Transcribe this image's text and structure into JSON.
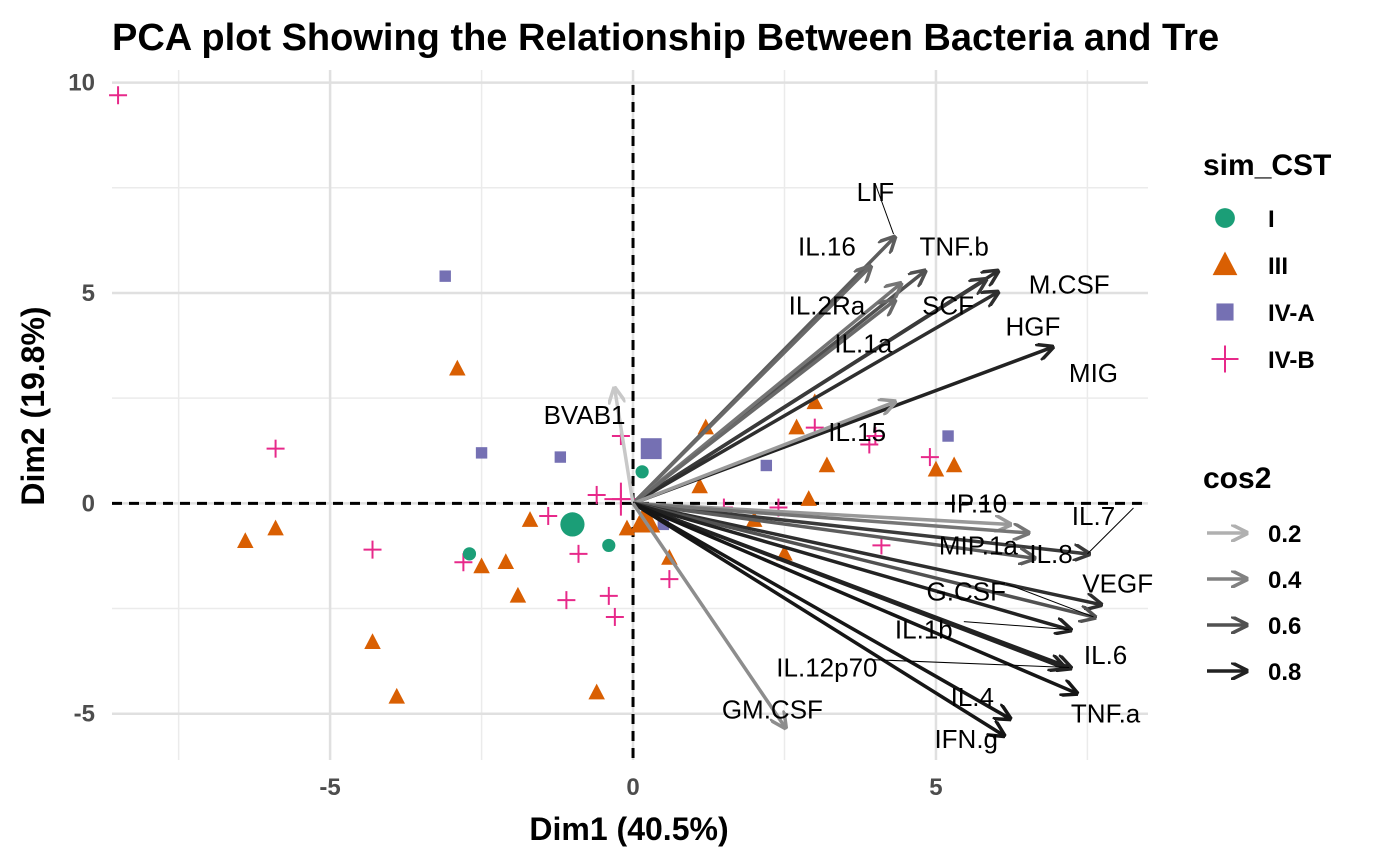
{
  "chart_data": {
    "type": "scatter",
    "title": "PCA plot Showing the Relationship Between Bacteria and Tre",
    "xlabel": "Dim1 (40.5%)",
    "ylabel": "Dim2 (19.8%)",
    "xlim": [
      -8.6,
      8.5
    ],
    "ylim": [
      -6.1,
      10.3
    ],
    "xticks": [
      -5,
      0,
      5
    ],
    "yticks": [
      -5,
      0,
      5,
      10
    ],
    "xtick_labels": [
      "-5",
      "0",
      "5"
    ],
    "ytick_labels": [
      "-5",
      "0",
      "5",
      "10"
    ],
    "grid": true,
    "reference_lines": {
      "x": 0,
      "y": 0,
      "style": "dashed"
    },
    "legend_placement": "right",
    "groups": [
      {
        "name": "I",
        "color": "#1b9e77",
        "shape": "circle"
      },
      {
        "name": "III",
        "color": "#d95f02",
        "shape": "triangle"
      },
      {
        "name": "IV-A",
        "color": "#7570b3",
        "shape": "square"
      },
      {
        "name": "IV-B",
        "color": "#e7298a",
        "shape": "plus"
      }
    ],
    "points": [
      {
        "group": "IV-B",
        "x": -8.5,
        "y": 9.7
      },
      {
        "group": "IV-B",
        "x": -5.9,
        "y": 1.3
      },
      {
        "group": "IV-B",
        "x": -4.3,
        "y": -1.1
      },
      {
        "group": "IV-B",
        "x": -2.8,
        "y": -1.4
      },
      {
        "group": "IV-B",
        "x": -1.4,
        "y": -0.3
      },
      {
        "group": "IV-B",
        "x": -1.1,
        "y": -2.3
      },
      {
        "group": "IV-B",
        "x": -0.9,
        "y": -1.2
      },
      {
        "group": "IV-B",
        "x": -0.6,
        "y": 0.2
      },
      {
        "group": "IV-B",
        "x": -0.4,
        "y": -2.2
      },
      {
        "group": "IV-B",
        "x": -0.3,
        "y": -2.7
      },
      {
        "group": "IV-B",
        "x": -0.2,
        "y": 1.6
      },
      {
        "group": "IV-B",
        "x": -0.2,
        "y": 0.1
      },
      {
        "group": "IV-B",
        "x": 0.6,
        "y": -1.8
      },
      {
        "group": "IV-B",
        "x": 1.5,
        "y": -0.1
      },
      {
        "group": "IV-B",
        "x": 2.4,
        "y": -0.1
      },
      {
        "group": "IV-B",
        "x": 3.0,
        "y": 1.8
      },
      {
        "group": "IV-B",
        "x": 3.9,
        "y": 1.4
      },
      {
        "group": "IV-B",
        "x": 4.0,
        "y": 1.6
      },
      {
        "group": "IV-B",
        "x": 4.1,
        "y": -1.0
      },
      {
        "group": "IV-B",
        "x": 4.9,
        "y": 1.1
      },
      {
        "group": "III",
        "x": -6.4,
        "y": -0.9
      },
      {
        "group": "III",
        "x": -5.9,
        "y": -0.6
      },
      {
        "group": "III",
        "x": -4.3,
        "y": -3.3
      },
      {
        "group": "III",
        "x": -3.9,
        "y": -4.6
      },
      {
        "group": "III",
        "x": -2.9,
        "y": 3.2
      },
      {
        "group": "III",
        "x": -2.5,
        "y": -1.5
      },
      {
        "group": "III",
        "x": -2.1,
        "y": -1.4
      },
      {
        "group": "III",
        "x": -1.9,
        "y": -2.2
      },
      {
        "group": "III",
        "x": -1.7,
        "y": -0.4
      },
      {
        "group": "III",
        "x": -0.6,
        "y": -4.5
      },
      {
        "group": "III",
        "x": -0.1,
        "y": -0.6
      },
      {
        "group": "III",
        "x": 0.2,
        "y": -0.4
      },
      {
        "group": "III",
        "x": 0.6,
        "y": -1.3
      },
      {
        "group": "III",
        "x": 1.1,
        "y": 0.4
      },
      {
        "group": "III",
        "x": 1.2,
        "y": 1.8
      },
      {
        "group": "III",
        "x": 2.0,
        "y": -0.4
      },
      {
        "group": "III",
        "x": 2.5,
        "y": -1.2
      },
      {
        "group": "III",
        "x": 2.7,
        "y": 1.8
      },
      {
        "group": "III",
        "x": 2.9,
        "y": 0.1
      },
      {
        "group": "III",
        "x": 3.0,
        "y": 2.4
      },
      {
        "group": "III",
        "x": 3.2,
        "y": 0.9
      },
      {
        "group": "III",
        "x": 5.0,
        "y": 0.8
      },
      {
        "group": "III",
        "x": 5.3,
        "y": 0.9
      },
      {
        "group": "IV-A",
        "x": -3.1,
        "y": 5.4
      },
      {
        "group": "IV-A",
        "x": -2.5,
        "y": 1.2
      },
      {
        "group": "IV-A",
        "x": -1.2,
        "y": 1.1
      },
      {
        "group": "IV-A",
        "x": 0.5,
        "y": -0.5
      },
      {
        "group": "IV-A",
        "x": 2.2,
        "y": 0.9
      },
      {
        "group": "IV-A",
        "x": 5.2,
        "y": 1.6
      },
      {
        "group": "I",
        "x": -2.7,
        "y": -1.2
      },
      {
        "group": "I",
        "x": -0.4,
        "y": -1.0
      },
      {
        "group": "I",
        "x": 0.15,
        "y": 0.75
      }
    ],
    "group_centers": [
      {
        "group": "I",
        "x": -1.0,
        "y": -0.5
      },
      {
        "group": "III",
        "x": 0.2,
        "y": -0.4
      },
      {
        "group": "IV-A",
        "x": 0.3,
        "y": 1.3
      },
      {
        "group": "IV-B",
        "x": -0.2,
        "y": 0.1
      }
    ],
    "variables": [
      {
        "name": "LIF",
        "x": 4.3,
        "y": 6.3,
        "cos2": 0.55
      },
      {
        "name": "IL.16",
        "x": 3.9,
        "y": 5.6,
        "cos2": 0.5
      },
      {
        "name": "TNF.b",
        "x": 4.8,
        "y": 5.5,
        "cos2": 0.6
      },
      {
        "name": "M.CSF",
        "x": 6.0,
        "y": 5.5,
        "cos2": 0.75
      },
      {
        "name": "IL.2Ra",
        "x": 4.4,
        "y": 5.2,
        "cos2": 0.45
      },
      {
        "name": "SCF",
        "x": 5.8,
        "y": 5.3,
        "cos2": 0.7
      },
      {
        "name": "HGF",
        "x": 6.0,
        "y": 5.0,
        "cos2": 0.75
      },
      {
        "name": "IL.1a",
        "x": 4.3,
        "y": 4.8,
        "cos2": 0.5
      },
      {
        "name": "MIG",
        "x": 6.9,
        "y": 3.7,
        "cos2": 0.8
      },
      {
        "name": "IL.15",
        "x": 4.3,
        "y": 2.4,
        "cos2": 0.3
      },
      {
        "name": "BVAB1",
        "x": -0.3,
        "y": 2.7,
        "cos2": 0.1
      },
      {
        "name": "IP.10",
        "x": 6.2,
        "y": -0.5,
        "cos2": 0.3
      },
      {
        "name": "IL.7",
        "x": 7.5,
        "y": -1.2,
        "cos2": 0.7
      },
      {
        "name": "MIP.1a",
        "x": 6.5,
        "y": -0.7,
        "cos2": 0.45
      },
      {
        "name": "IL.8",
        "x": 6.6,
        "y": -1.3,
        "cos2": 0.55
      },
      {
        "name": "VEGF",
        "x": 7.7,
        "y": -2.4,
        "cos2": 0.75
      },
      {
        "name": "G.CSF",
        "x": 7.6,
        "y": -2.7,
        "cos2": 0.6
      },
      {
        "name": "IL.1b",
        "x": 7.2,
        "y": -3.0,
        "cos2": 0.8
      },
      {
        "name": "IL.6",
        "x": 7.1,
        "y": -3.9,
        "cos2": 0.8
      },
      {
        "name": "IL.12p70",
        "x": 7.2,
        "y": -3.9,
        "cos2": 0.8
      },
      {
        "name": "TNF.a",
        "x": 7.3,
        "y": -4.5,
        "cos2": 0.85
      },
      {
        "name": "IL.4",
        "x": 6.2,
        "y": -5.1,
        "cos2": 0.85
      },
      {
        "name": "IFN.g",
        "x": 6.1,
        "y": -5.5,
        "cos2": 0.85
      },
      {
        "name": "GM.CSF",
        "x": 2.5,
        "y": -5.3,
        "cos2": 0.35
      }
    ],
    "legends": [
      {
        "title": "sim_CST",
        "entries": [
          "I",
          "III",
          "IV-A",
          "IV-B"
        ]
      },
      {
        "title": "cos2",
        "entries": [
          "0.2",
          "0.4",
          "0.6",
          "0.8"
        ]
      }
    ]
  }
}
